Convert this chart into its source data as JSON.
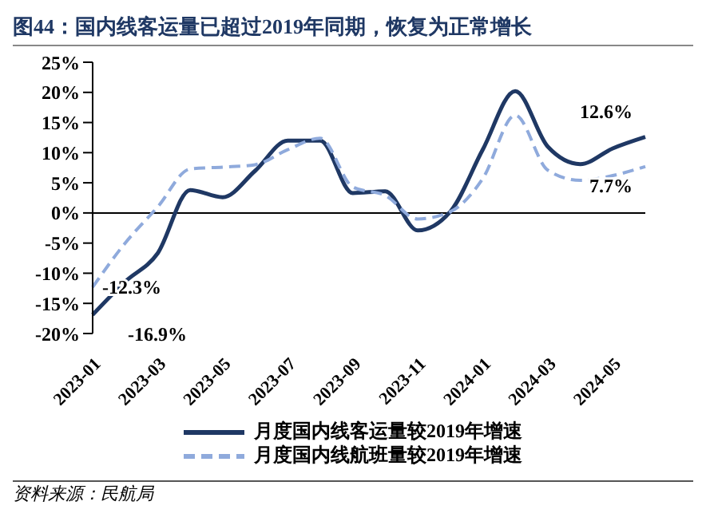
{
  "chart_data": {
    "type": "line",
    "title": "图44：国内线客运量已超过2019年同期，恢复为正常增长",
    "categories": [
      "2023-01",
      null,
      "2023-03",
      null,
      "2023-05",
      null,
      "2023-07",
      null,
      "2023-09",
      null,
      "2023-11",
      null,
      "2024-01",
      null,
      "2024-03",
      null,
      "2024-05",
      null
    ],
    "series": [
      {
        "name": "月度国内线客运量较2019年增速",
        "color": "#1f3864",
        "line_style": "solid",
        "values": [
          -16.9,
          -11.4,
          -6.7,
          3.8,
          2.6,
          7,
          12,
          12,
          3.3,
          3.6,
          -2.9,
          0.2,
          10.5,
          20.2,
          11,
          8.1,
          10.7,
          12.6
        ],
        "value_labels": [
          "-16.9%",
          null,
          null,
          null,
          null,
          null,
          null,
          null,
          null,
          null,
          null,
          null,
          null,
          null,
          null,
          null,
          null,
          "12.6%"
        ]
      },
      {
        "name": "月度国内线航班量较2019年增速",
        "color": "#8faadc",
        "line_style": "dashed",
        "values": [
          -12.3,
          -5,
          1,
          7.3,
          7.6,
          8,
          10.5,
          12.4,
          4.3,
          2.9,
          -1,
          0.2,
          5.7,
          16.2,
          7.1,
          5.4,
          6.2,
          7.7
        ],
        "value_labels": [
          "-12.3%",
          null,
          null,
          null,
          null,
          null,
          null,
          null,
          null,
          null,
          null,
          null,
          null,
          null,
          null,
          null,
          null,
          "7.7%"
        ]
      }
    ],
    "ylim": [
      -20,
      25
    ],
    "yticks": [
      {
        "value": -20,
        "label": "-20%"
      },
      {
        "value": -15,
        "label": "-15%"
      },
      {
        "value": -10,
        "label": "-10%"
      },
      {
        "value": -5,
        "label": "-5%"
      },
      {
        "value": 0,
        "label": "0%"
      },
      {
        "value": 5,
        "label": "5%"
      },
      {
        "value": 10,
        "label": "10%"
      },
      {
        "value": 15,
        "label": "15%"
      },
      {
        "value": 20,
        "label": "20%"
      },
      {
        "value": 25,
        "label": "25%"
      }
    ],
    "ref_lines": [
      {
        "axis": "y",
        "value": 0,
        "color": "#000000"
      }
    ],
    "grid": false,
    "legend": "bottom",
    "marker": "none",
    "annotations": [
      "资料来源：民航局"
    ]
  }
}
